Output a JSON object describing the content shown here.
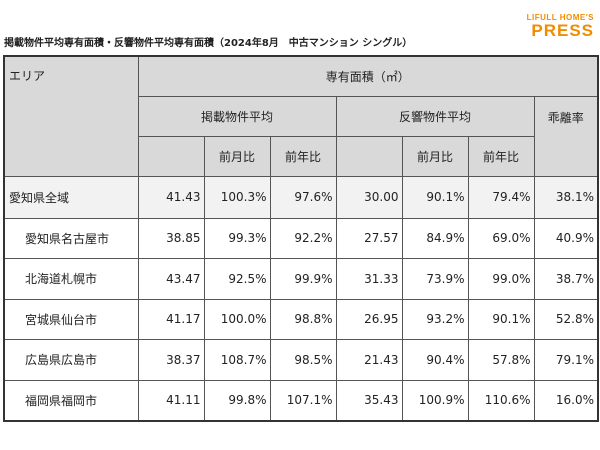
{
  "header": {
    "title": "掲載物件平均専有面積・反響物件平均専有面積（2024年8月　中古マンション シングル）",
    "logo_top": "LIFULL HOME'S",
    "logo_main": "PRESS"
  },
  "table": {
    "area_header": "エリア",
    "area_group": "専有面積（㎡）",
    "groups": [
      "掲載物件平均",
      "反響物件平均"
    ],
    "ratio_header": "乖離率",
    "sub_headers": [
      "前月比",
      "前年比",
      "前月比",
      "前年比"
    ],
    "rows": [
      [
        "愛知県全域",
        "41.43",
        "100.3%",
        "97.6%",
        "30.00",
        "90.1%",
        "79.4%",
        "38.1%"
      ],
      [
        "愛知県名古屋市",
        "38.85",
        "99.3%",
        "92.2%",
        "27.57",
        "84.9%",
        "69.0%",
        "40.9%"
      ],
      [
        "北海道札幌市",
        "43.47",
        "92.5%",
        "99.9%",
        "31.33",
        "73.9%",
        "99.0%",
        "38.7%"
      ],
      [
        "宮城県仙台市",
        "41.17",
        "100.0%",
        "98.8%",
        "26.95",
        "93.2%",
        "90.1%",
        "52.8%"
      ],
      [
        "広島県広島市",
        "38.37",
        "108.7%",
        "98.5%",
        "21.43",
        "90.4%",
        "57.8%",
        "79.1%"
      ],
      [
        "福岡県福岡市",
        "41.11",
        "99.8%",
        "107.1%",
        "35.43",
        "100.9%",
        "110.6%",
        "16.0%"
      ]
    ]
  }
}
